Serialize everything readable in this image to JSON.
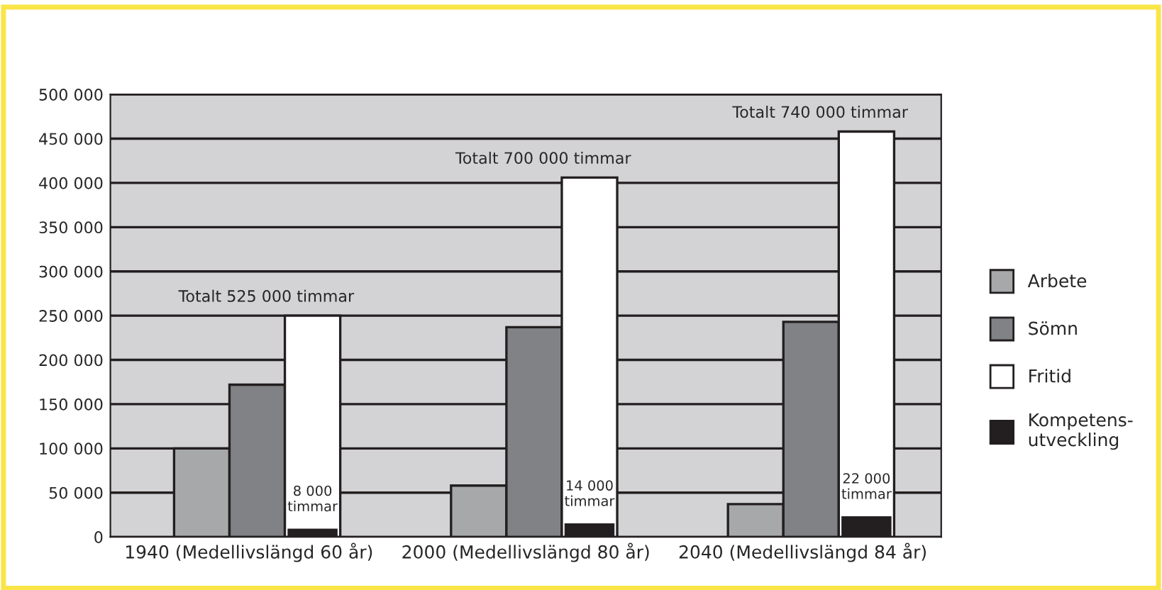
{
  "chart_data": {
    "type": "bar",
    "categories": [
      "1940 (Medellivslängd 60 år)",
      "2000 (Medellivslängd 80 år)",
      "2040 (Medellivslängd 84 år)"
    ],
    "series": [
      {
        "name": "Arbete",
        "color": "#a7a8aa",
        "values": [
          100000,
          58000,
          37000
        ]
      },
      {
        "name": "Sömn",
        "color": "#818285",
        "values": [
          172000,
          237000,
          243000
        ]
      },
      {
        "name": "Fritid",
        "color": "#ffffff",
        "values": [
          250000,
          406000,
          458000
        ]
      },
      {
        "name": "Kompetens-\nutveckling",
        "color": "#231f20",
        "values": [
          8000,
          14000,
          22000
        ],
        "value_labels": [
          "8 000\ntimmar",
          "14 000\ntimmar",
          "22 000\ntimmar"
        ]
      }
    ],
    "annotations": [
      "Totalt 525 000 timmar",
      "Totalt 700 000 timmar",
      "Totalt 740 000 timmar"
    ],
    "ylim": [
      0,
      500000
    ],
    "yticks": [
      {
        "value": 0,
        "label": "0"
      },
      {
        "value": 50000,
        "label": "50 000"
      },
      {
        "value": 100000,
        "label": "100 000"
      },
      {
        "value": 150000,
        "label": "150 000"
      },
      {
        "value": 200000,
        "label": "200 000"
      },
      {
        "value": 250000,
        "label": "250 000"
      },
      {
        "value": 300000,
        "label": "300 000"
      },
      {
        "value": 350000,
        "label": "350 000"
      },
      {
        "value": 400000,
        "label": "400 000"
      },
      {
        "value": 450000,
        "label": "450 000"
      },
      {
        "value": 500000,
        "label": "500 000"
      }
    ],
    "grid": "y",
    "legend": "right"
  }
}
